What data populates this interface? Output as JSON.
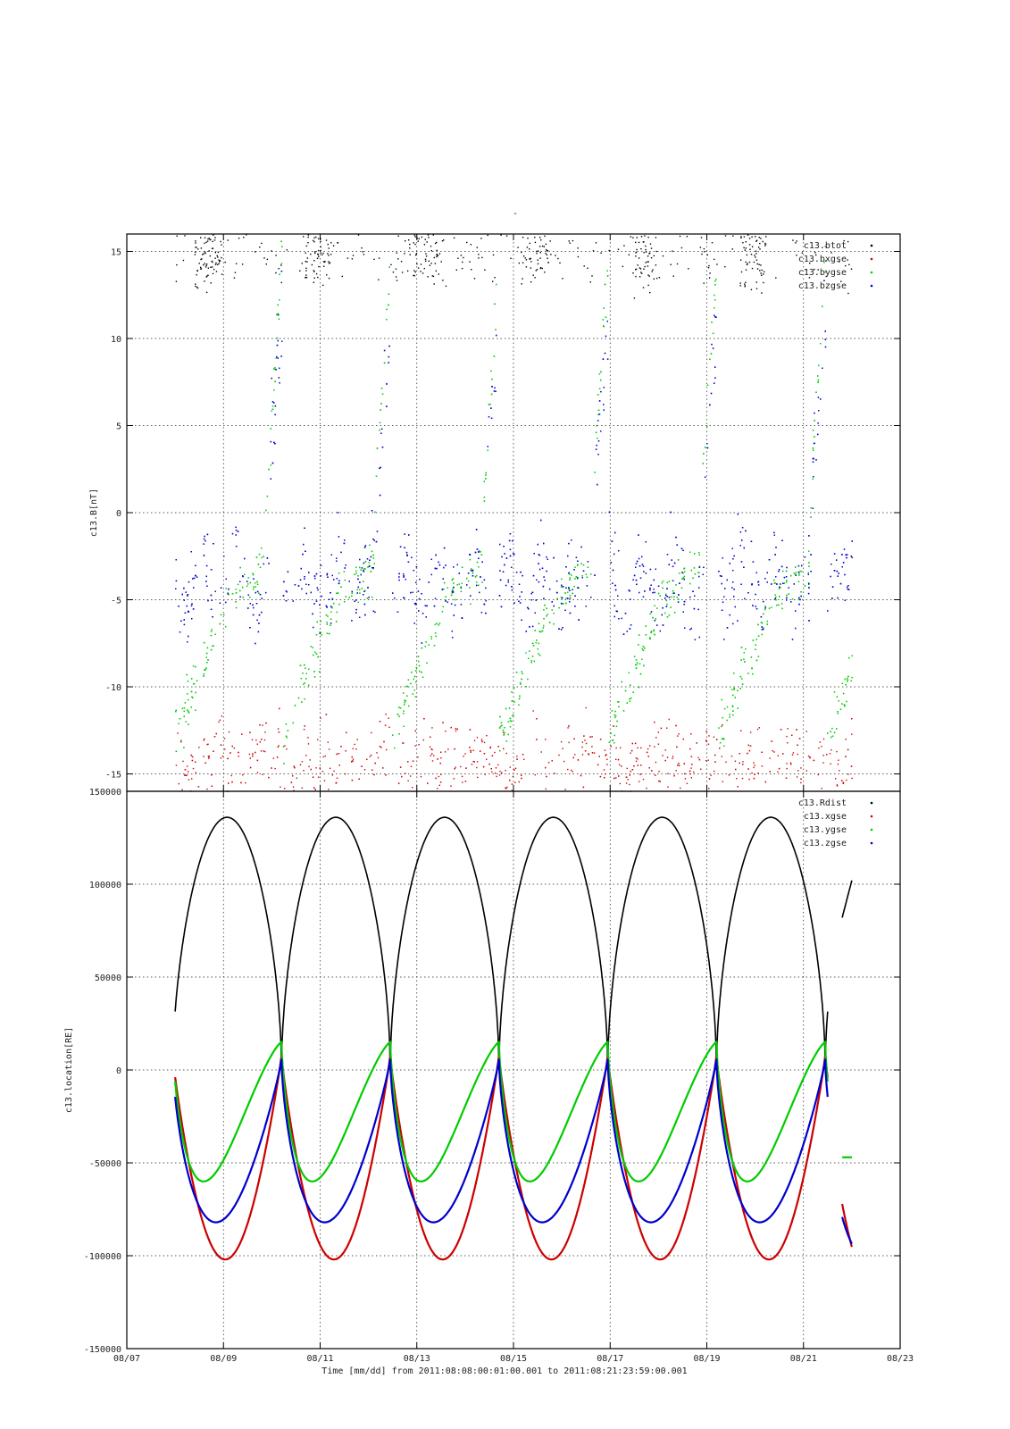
{
  "page_title": "-",
  "chart_data": [
    {
      "type": "scatter",
      "ylabel": "c13.B[nT]",
      "xlabel": "",
      "ylim": [
        -16,
        16
      ],
      "yticks": [
        -15,
        -10,
        -5,
        0,
        5,
        10,
        15
      ],
      "grid": true,
      "legend_position": "top-right",
      "series": [
        {
          "name": "c13.btot",
          "color": "#000000"
        },
        {
          "name": "c13.bxgse",
          "color": "#cc0000"
        },
        {
          "name": "c13.bygse",
          "color": "#00cc00"
        },
        {
          "name": "c13.bzgse",
          "color": "#0000cc"
        }
      ]
    },
    {
      "type": "line",
      "ylabel": "c13.location[RE]",
      "xlabel": "Time [mm/dd]  from 2011:08:08:00:01:00.001  to  2011:08:21:23:59:00.001",
      "ylim": [
        -150000,
        150000
      ],
      "yticks": [
        -150000,
        -100000,
        -50000,
        0,
        50000,
        100000,
        150000
      ],
      "grid": true,
      "legend_position": "top-right",
      "series": [
        {
          "name": "c13.Rdist",
          "color": "#000000"
        },
        {
          "name": "c13.xgse",
          "color": "#cc0000"
        },
        {
          "name": "c13.ygse",
          "color": "#00cc00"
        },
        {
          "name": "c13.zgse",
          "color": "#0000cc"
        }
      ]
    }
  ],
  "x_axis": {
    "range": [
      "08/07",
      "08/23"
    ],
    "tick_labels": [
      "08/07",
      "08/09",
      "08/11",
      "08/13",
      "08/15",
      "08/17",
      "08/19",
      "08/21",
      "08/23"
    ]
  },
  "orbit": {
    "period_days": 2.25,
    "start_day": 1.0,
    "end_day": 14.5,
    "perigee_days": [
      3.2,
      5.45,
      7.7,
      9.95,
      12.2,
      14.45
    ],
    "rdist_peak": 136000,
    "xgse_min": -102000,
    "ygse_min": -60000,
    "zgse_min": -82000,
    "post_gap_segment_days": [
      14.8,
      15.0
    ]
  },
  "field": {
    "sample_count_per_series": 1800
  }
}
